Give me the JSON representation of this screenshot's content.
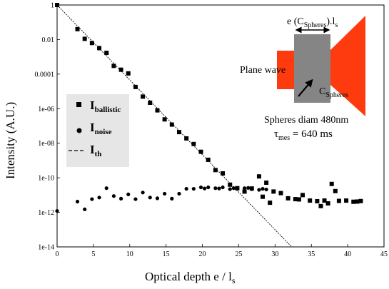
{
  "chart_data": {
    "type": "scatter",
    "xlabel": "Optical depth e / l",
    "xlabel_sub": "s",
    "ylabel": "Intensity (A.U.)",
    "xlim": [
      0,
      45
    ],
    "ylim_log10": [
      -14,
      0
    ],
    "y_scale": "log",
    "x_ticks": [
      0,
      5,
      10,
      15,
      20,
      25,
      30,
      35,
      40,
      45
    ],
    "y_ticks": [
      {
        "value": 1,
        "label": "1"
      },
      {
        "value": 0.01,
        "label": "0.01"
      },
      {
        "value": 0.0001,
        "label": "0.0001"
      },
      {
        "value": 1e-06,
        "label": "1e-06"
      },
      {
        "value": 1e-08,
        "label": "1e-08"
      },
      {
        "value": 1e-10,
        "label": "1e-10"
      },
      {
        "value": 1e-12,
        "label": "1e-12"
      },
      {
        "value": 1e-14,
        "label": "1e-14"
      }
    ],
    "grid": false,
    "legend_placement": "left-middle",
    "series": [
      {
        "name": "I_ballistic",
        "label_main": "I",
        "label_sub": "ballistic",
        "marker": "square",
        "points": [
          [
            0,
            1
          ],
          [
            2.8,
            0.04
          ],
          [
            3.8,
            0.011
          ],
          [
            4.8,
            0.0063
          ],
          [
            5.8,
            0.0032
          ],
          [
            6.8,
            0.0017
          ],
          [
            7.8,
            0.0003
          ],
          [
            8.8,
            0.00018
          ],
          [
            9.8,
            0.00011
          ],
          [
            10.8,
            1.8e-05
          ],
          [
            11.8,
            5e-06
          ],
          [
            12.8,
            2.2e-06
          ],
          [
            13.8,
            8e-07
          ],
          [
            14.8,
            2.4e-07
          ],
          [
            15.8,
            1.2e-07
          ],
          [
            16.8,
            4.4e-08
          ],
          [
            17.8,
            1.9e-08
          ],
          [
            18.8,
            9e-09
          ],
          [
            19.8,
            3.2e-09
          ],
          [
            20.8,
            1.1e-09
          ],
          [
            21.8,
            2.8e-10
          ],
          [
            22.8,
            1.8e-10
          ],
          [
            23.8,
            4e-11
          ],
          [
            24.8,
            2.5e-11
          ],
          [
            25.8,
            1.6e-11
          ],
          [
            26.8,
            2.4e-11
          ],
          [
            27.8,
            1.2e-10
          ],
          [
            28.8,
            5.2e-11
          ],
          [
            29.8,
            1.6e-11
          ],
          [
            30.8,
            1.3e-11
          ],
          [
            31.8,
            6.5e-12
          ],
          [
            32.8,
            5.8e-12
          ],
          [
            33.8,
            1e-11
          ],
          [
            34.8,
            4.8e-12
          ],
          [
            35.8,
            4.4e-12
          ],
          [
            36.8,
            4.8e-12
          ],
          [
            37.8,
            4.4e-11
          ],
          [
            38.3,
            1.7e-11
          ],
          [
            39.8,
            4.8e-12
          ],
          [
            40.8,
            4.1e-12
          ],
          [
            41.8,
            4.5e-12
          ],
          [
            28.3,
            8e-12
          ],
          [
            29.3,
            3.6e-12
          ],
          [
            33.3,
            5.6e-12
          ],
          [
            36.3,
            2.3e-12
          ],
          [
            37.3,
            3.3e-12
          ],
          [
            38.8,
            4.6e-12
          ],
          [
            41.3,
            4.2e-12
          ]
        ]
      },
      {
        "name": "I_noise",
        "label_main": "I",
        "label_sub": "noise",
        "marker": "circle",
        "points": [
          [
            0,
            1.2e-12
          ],
          [
            2.8,
            4.2e-12
          ],
          [
            3.8,
            1.5e-12
          ],
          [
            4.8,
            5.8e-12
          ],
          [
            5.8,
            7.2e-12
          ],
          [
            6.8,
            2.5e-11
          ],
          [
            7.8,
            8.8e-12
          ],
          [
            8.8,
            6.2e-12
          ],
          [
            9.8,
            1.1e-11
          ],
          [
            10.8,
            5.8e-12
          ],
          [
            11.8,
            1.4e-11
          ],
          [
            12.8,
            7.2e-12
          ],
          [
            13.8,
            6.5e-12
          ],
          [
            14.8,
            1.2e-11
          ],
          [
            15.8,
            6.2e-12
          ],
          [
            16.8,
            1.2e-11
          ],
          [
            17.8,
            2.3e-11
          ],
          [
            18.8,
            2.3e-11
          ],
          [
            19.8,
            2.8e-11
          ],
          [
            20.8,
            2.8e-11
          ],
          [
            21.8,
            2.5e-11
          ],
          [
            22.8,
            2.8e-11
          ],
          [
            23.8,
            2.2e-11
          ],
          [
            24.8,
            2.3e-11
          ],
          [
            25.8,
            2.5e-11
          ],
          [
            26.8,
            2.2e-11
          ],
          [
            27.8,
            2e-11
          ],
          [
            28.8,
            2.1e-11
          ],
          [
            20.3,
            2.4e-11
          ],
          [
            22.3,
            2.4e-11
          ],
          [
            24.3,
            2.5e-11
          ],
          [
            26.3,
            2.6e-11
          ],
          [
            28.3,
            2.3e-11
          ]
        ]
      },
      {
        "name": "I_th",
        "label_main": "I",
        "label_sub": "th",
        "marker": "dashed-line",
        "line": [
          [
            0,
            1
          ],
          [
            32.3,
            1e-14
          ]
        ]
      }
    ],
    "annotations": {
      "plane_wave": "Plane wave",
      "width_label_main": "e (C",
      "width_label_sub": "Spheres",
      "width_label_tail": ").l",
      "width_label_sub2": "s",
      "c_main": "C",
      "c_sub": "Spheres",
      "spheres_diam": "Spheres diam 480nm",
      "tau_main": "τ",
      "tau_sub": "mes",
      "tau_value": " = 640 ms"
    },
    "colors": {
      "beam": "#fe3b0e",
      "slab": "#858585",
      "legend_bg": "#e6e6e6",
      "markers": "#000000"
    }
  }
}
